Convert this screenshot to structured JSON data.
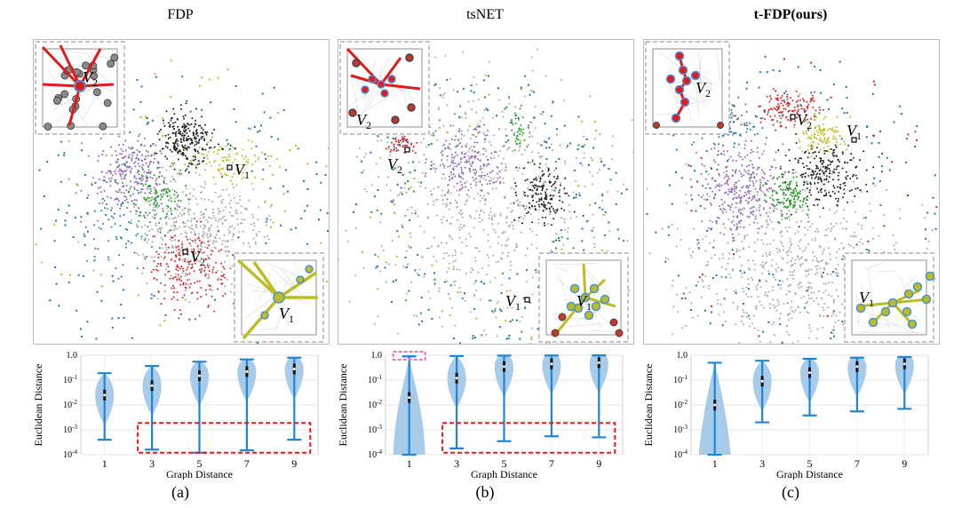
{
  "panels": [
    {
      "title": "FDP",
      "title_bold": false,
      "sub_label": "(a)"
    },
    {
      "title": "tsNET",
      "title_bold": false,
      "sub_label": "(b)"
    },
    {
      "title": "t-FDP(ours)",
      "title_bold": true,
      "sub_label": "(c)"
    }
  ],
  "node_labels": {
    "v1": "V",
    "v1_sub": "1",
    "v2": "V",
    "v2_sub": "2"
  },
  "colors": {
    "purple": "#9467bd",
    "black": "#222222",
    "yellow": "#bcbd22",
    "green": "#2ca02c",
    "blue": "#1f77b4",
    "red": "#d62728",
    "gray": "#a9a9a9",
    "violin": "#a9cbea",
    "whisker": "#1f86d6",
    "highlight_red": "#e31a1c",
    "highlight_magenta": "#e377c2"
  },
  "chart_data": [
    {
      "type": "violin",
      "title": "",
      "xlabel": "Graph  Distance",
      "ylabel": "Euclidean  Distance",
      "yscale": "log",
      "ylim": [
        0.0001,
        1.0
      ],
      "yticks": [
        "10^-4",
        "10^-3",
        "10^-2",
        "10^-1",
        "1.0"
      ],
      "categories": [
        "1",
        "3",
        "5",
        "7",
        "9"
      ],
      "whisker_min": [
        0.0004,
        0.00016,
        0.00012,
        0.00015,
        0.0004
      ],
      "whisker_max": [
        0.19,
        0.37,
        0.55,
        0.68,
        0.8
      ],
      "median": [
        0.025,
        0.06,
        0.15,
        0.22,
        0.28
      ],
      "grid": true
    },
    {
      "type": "violin",
      "title": "",
      "xlabel": "Graph  Distance",
      "ylabel": "Euclidean  Distance",
      "yscale": "log",
      "ylim": [
        0.0001,
        1.0
      ],
      "yticks": [
        "10^-4",
        "10^-3",
        "10^-2",
        "10^-1",
        "1.0"
      ],
      "categories": [
        "1",
        "3",
        "5",
        "7",
        "9"
      ],
      "whisker_min": [
        0.0001,
        0.00018,
        0.00035,
        0.00055,
        0.0005
      ],
      "whisker_max": [
        0.9,
        0.93,
        0.97,
        0.98,
        0.99
      ],
      "median": [
        0.02,
        0.12,
        0.35,
        0.45,
        0.5
      ],
      "grid": true
    },
    {
      "type": "violin",
      "title": "",
      "xlabel": "Graph  Distance",
      "ylabel": "Euclidean  Distance",
      "yscale": "log",
      "ylim": [
        0.0001,
        1.0
      ],
      "yticks": [
        "10^-4",
        "10^-3",
        "10^-2",
        "10^-1",
        "1.0"
      ],
      "categories": [
        "1",
        "3",
        "5",
        "7",
        "9"
      ],
      "whisker_min": [
        0.0001,
        0.002,
        0.0038,
        0.0055,
        0.007
      ],
      "whisker_max": [
        0.5,
        0.6,
        0.72,
        0.8,
        0.85
      ],
      "median": [
        0.01,
        0.09,
        0.2,
        0.35,
        0.45
      ],
      "grid": true
    }
  ]
}
